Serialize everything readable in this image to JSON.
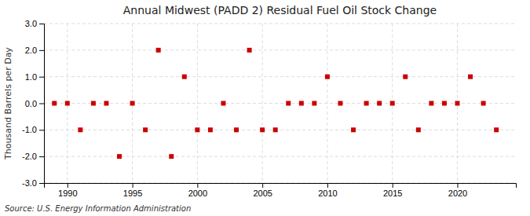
{
  "chart_data": {
    "type": "scatter",
    "title": "Annual Midwest (PADD 2) Residual Fuel Oil Stock Change",
    "ylabel": "Thousand Barrels per Day",
    "source": "Source: U.S. Energy Information Administration",
    "x": [
      1989,
      1990,
      1991,
      1992,
      1993,
      1994,
      1995,
      1996,
      1997,
      1998,
      1999,
      2000,
      2001,
      2002,
      2003,
      2004,
      2005,
      2006,
      2007,
      2008,
      2009,
      2010,
      2011,
      2012,
      2013,
      2014,
      2015,
      2016,
      2017,
      2018,
      2019,
      2020,
      2021,
      2022,
      2023
    ],
    "values": [
      0,
      0,
      -1,
      0,
      0,
      -2,
      0,
      -1,
      2,
      -2,
      1,
      -1,
      -1,
      0,
      -1,
      2,
      -1,
      -1,
      0,
      0,
      0,
      1,
      0,
      -1,
      0,
      0,
      0,
      1,
      -1,
      0,
      0,
      0,
      1,
      0,
      -1
    ],
    "color": "#cc0000",
    "marker": "square",
    "grid": true,
    "xlim": [
      1988.2,
      2024.5
    ],
    "xticks": [
      1990,
      1995,
      2000,
      2005,
      2010,
      2015,
      2020
    ],
    "ylim": [
      -3.0,
      3.0
    ],
    "yticks": [
      {
        "value": -3.0,
        "label": "-3.0"
      },
      {
        "value": -2.0,
        "label": "-2.0"
      },
      {
        "value": -1.0,
        "label": "-1.0"
      },
      {
        "value": 0.0,
        "label": "0.0"
      },
      {
        "value": 1.0,
        "label": "1.0"
      },
      {
        "value": 2.0,
        "label": "2.0"
      },
      {
        "value": 3.0,
        "label": "3.0"
      }
    ]
  }
}
